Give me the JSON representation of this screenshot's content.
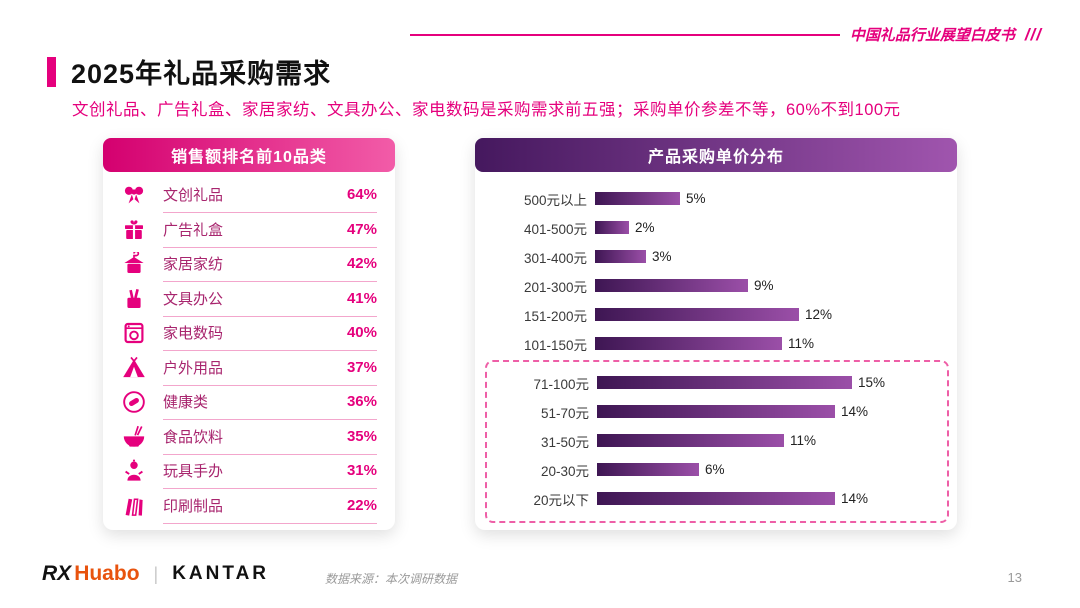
{
  "page": {
    "report_tag": "中国礼品行业展望白皮书",
    "slashes": "///",
    "title": "2025年礼品采购需求",
    "subtitle": "文创礼品、广告礼盒、家居家纺、文具办公、家电数码是采购需求前五强；采购单价参差不等，60%不到100元",
    "page_number": "13"
  },
  "footer": {
    "logo_rx": "RX",
    "logo_huabo": "Huabo",
    "separator": "|",
    "logo_kantar": "KANTAR",
    "source": "数据来源：本次调研数据"
  },
  "colors": {
    "magenta": "#E5007D",
    "pink_header_gradient": [
      "#D4006F",
      "#F25CA8"
    ],
    "purple_header_gradient": [
      "#45185E",
      "#A055AE"
    ],
    "bar_gradient": [
      "#3E1653",
      "#9B4FA8"
    ],
    "dashed_border": "#EE5FA7"
  },
  "chart_data": [
    {
      "type": "table",
      "title": "销售额排名前10品类",
      "rows": [
        {
          "icon": "gift-ribbon-icon",
          "label": "文创礼品",
          "value": "64%"
        },
        {
          "icon": "gift-box-icon",
          "label": "广告礼盒",
          "value": "47%"
        },
        {
          "icon": "home-textile-icon",
          "label": "家居家纺",
          "value": "42%"
        },
        {
          "icon": "stationery-icon",
          "label": "文具办公",
          "value": "41%"
        },
        {
          "icon": "appliance-icon",
          "label": "家电数码",
          "value": "40%"
        },
        {
          "icon": "tent-icon",
          "label": "户外用品",
          "value": "37%"
        },
        {
          "icon": "health-icon",
          "label": "健康类",
          "value": "36%"
        },
        {
          "icon": "food-icon",
          "label": "食品饮料",
          "value": "35%"
        },
        {
          "icon": "toy-icon",
          "label": "玩具手办",
          "value": "31%"
        },
        {
          "icon": "print-icon",
          "label": "印刷制品",
          "value": "22%"
        }
      ]
    },
    {
      "type": "bar",
      "title": "产品采购单价分布",
      "orientation": "horizontal",
      "categories": [
        "500元以上",
        "401-500元",
        "301-400元",
        "201-300元",
        "151-200元",
        "101-150元",
        "71-100元",
        "51-70元",
        "31-50元",
        "20-30元",
        "20元以下"
      ],
      "values": [
        5,
        2,
        3,
        9,
        12,
        11,
        15,
        14,
        11,
        6,
        14
      ],
      "unit": "%",
      "xlim": [
        0,
        16
      ],
      "grid": false,
      "legend": "none",
      "highlight_start_index": 6,
      "highlight_categories": [
        "71-100元",
        "51-70元",
        "31-50元",
        "20-30元",
        "20元以下"
      ]
    }
  ]
}
